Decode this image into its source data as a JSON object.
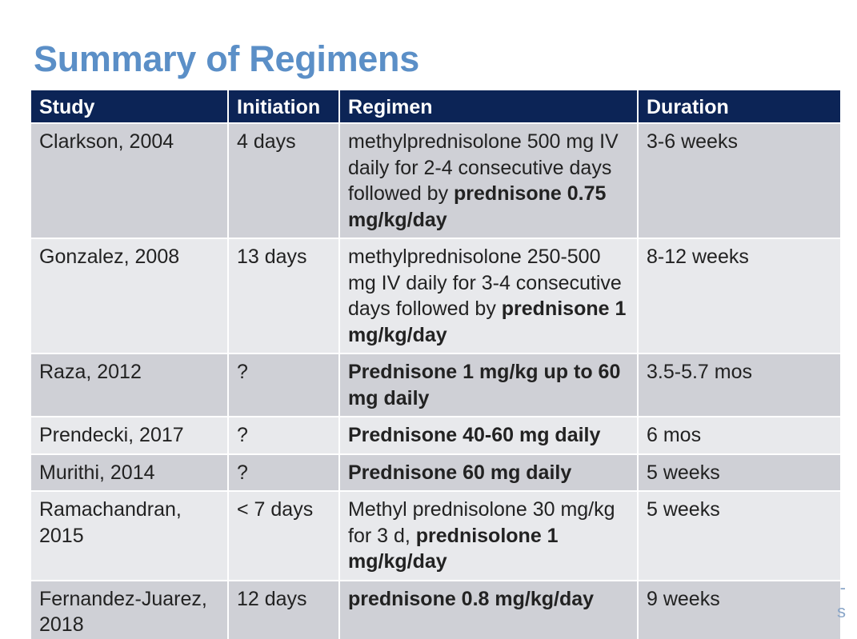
{
  "title": "Summary of Regimens",
  "table": {
    "headers": [
      "Study",
      "Initiation",
      "Regimen",
      "Duration"
    ],
    "rows": [
      {
        "study": "Clarkson, 2004",
        "initiation": "4 days",
        "regimen_plain": "methylprednisolone 500 mg IV daily for 2-4 consecutive days followed by ",
        "regimen_bold": "prednisone 0.75 mg/kg/day",
        "duration": "3-6 weeks"
      },
      {
        "study": "Gonzalez, 2008",
        "initiation": "13 days",
        "regimen_plain": "methylprednisolone 250-500 mg IV daily for 3-4 consecutive days followed by ",
        "regimen_bold": "prednisone 1 mg/kg/day",
        "duration": "8-12 weeks"
      },
      {
        "study": "Raza, 2012",
        "initiation": "?",
        "regimen_plain": "",
        "regimen_bold": "Prednisone 1 mg/kg up to 60 mg daily",
        "duration": "3.5-5.7 mos"
      },
      {
        "study": "Prendecki, 2017",
        "initiation": "?",
        "regimen_plain": "",
        "regimen_bold": "Prednisone 40-60 mg daily",
        "duration": "6 mos"
      },
      {
        "study": "Murithi, 2014",
        "initiation": "?",
        "regimen_plain": "",
        "regimen_bold": "Prednisone 60 mg daily",
        "duration": "5 weeks"
      },
      {
        "study": "Ramachandran, 2015",
        "initiation": "< 7 days",
        "regimen_plain": "Methyl prednisolone 30 mg/kg for 3 d, ",
        "regimen_bold": "prednisolone 1 mg/kg/day",
        "duration": "5 weeks"
      },
      {
        "study": "Fernandez-Juarez, 2018",
        "initiation": "12 days",
        "regimen_plain": "",
        "regimen_bold": "prednisone 0.8 mg/kg/day",
        "duration": "9 weeks"
      }
    ]
  },
  "edge_marks": [
    "-",
    "s"
  ]
}
